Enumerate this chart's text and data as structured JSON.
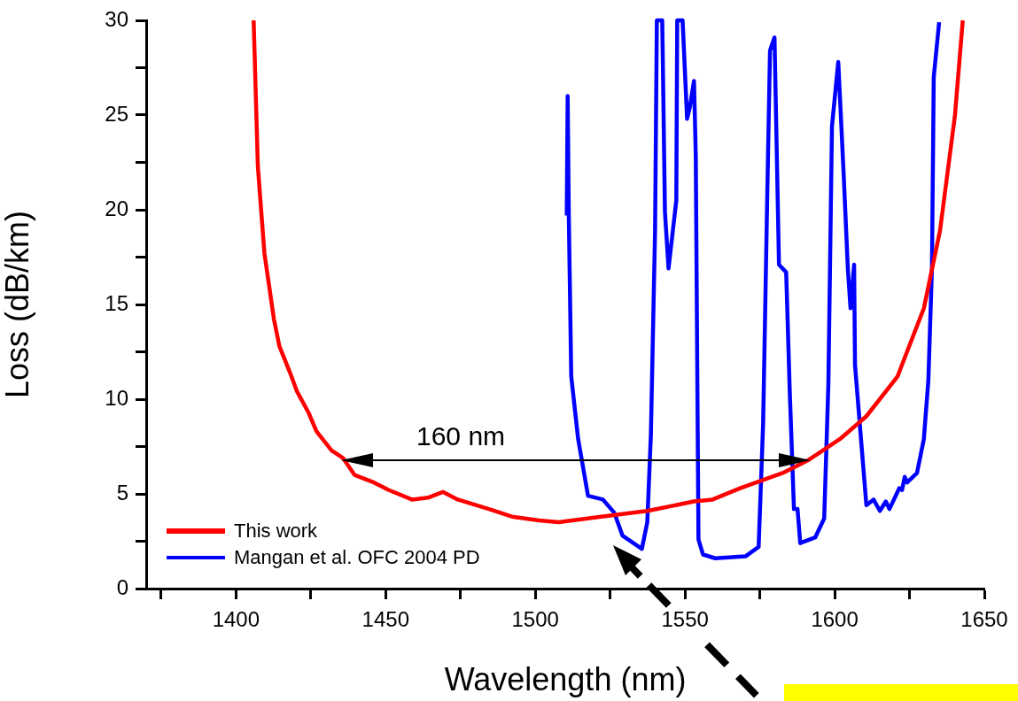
{
  "chart_data": {
    "type": "line",
    "xlabel": "Wavelength (nm)",
    "ylabel": "Loss (dB/km)",
    "xlim": [
      1370,
      1650
    ],
    "xticks": [
      {
        "value": 1375,
        "label": null
      },
      1400,
      {
        "value": 1425,
        "label": null
      },
      1450,
      {
        "value": 1475,
        "label": null
      },
      1500,
      {
        "value": 1525,
        "label": null
      },
      1550,
      {
        "value": 1575,
        "label": null
      },
      1600,
      {
        "value": 1625,
        "label": null
      },
      1650
    ],
    "ylim": [
      0,
      30
    ],
    "yticks": [
      0,
      {
        "value": 2.5,
        "label": null
      },
      5,
      {
        "value": 7.5,
        "label": null
      },
      10,
      {
        "value": 12.5,
        "label": null
      },
      15,
      {
        "value": 17.5,
        "label": null
      },
      20,
      {
        "value": 22.5,
        "label": null
      },
      25,
      {
        "value": 27.5,
        "label": null
      },
      30
    ],
    "grid": false,
    "legend": "bottom left",
    "line_style": "solid",
    "annotations": [
      "160 nm"
    ],
    "series": [
      {
        "name": "This work",
        "color": "#ff0000",
        "x": [
          1405.9,
          1407.3,
          1409.5,
          1412.7,
          1414.5,
          1418.3,
          1420.4,
          1424.2,
          1426.9,
          1431.9,
          1435.7,
          1439.6,
          1446.1,
          1451.1,
          1458.8,
          1464.1,
          1469.1,
          1474.1,
          1484.5,
          1492.2,
          1501.3,
          1507.8,
          1522,
          1537.4,
          1553,
          1559.2,
          1568.4,
          1582.6,
          1591.4,
          1601.8,
          1610.6,
          1621,
          1629.8,
          1635.2,
          1640.2,
          1642.8
        ],
        "values": [
          30,
          22.3,
          17.7,
          14.2,
          12.8,
          11.3,
          10.4,
          9.3,
          8.3,
          7.3,
          6.9,
          6.0,
          5.6,
          5.2,
          4.7,
          4.8,
          5.1,
          4.7,
          4.2,
          3.8,
          3.6,
          3.5,
          3.8,
          4.1,
          4.6,
          4.7,
          5.3,
          6.1,
          6.8,
          7.9,
          9.1,
          11.2,
          14.8,
          18.9,
          25,
          30
        ]
      },
      {
        "name": "Mangan et al. OFC 2004 PD",
        "color": "#0000ff",
        "x": [
          1510.5,
          1510.8,
          1511.2,
          1512,
          1514.3,
          1517.6,
          1522.6,
          1526.4,
          1529.1,
          1535.6,
          1537.4,
          1538.6,
          1540,
          1540.6,
          1542.4,
          1543.3,
          1544.5,
          1547.1,
          1547.4,
          1549.2,
          1550.7,
          1551.6,
          1553,
          1553.6,
          1554.5,
          1556,
          1560.1,
          1570.2,
          1574.6,
          1576.1,
          1577.5,
          1578.4,
          1579.9,
          1581.4,
          1583.8,
          1585,
          1586.4,
          1587.6,
          1588.5,
          1593.5,
          1596.5,
          1597.9,
          1599.1,
          1601.2,
          1603,
          1604.4,
          1605.3,
          1606.5,
          1606.8,
          1608.9,
          1610.6,
          1613,
          1615.1,
          1617.1,
          1618.3,
          1621.6,
          1622.5,
          1623.4,
          1624.2,
          1627.5,
          1629.8,
          1631.3,
          1632.5,
          1633.1,
          1634.9
        ],
        "values": [
          19.7,
          26,
          19.5,
          11.2,
          7.9,
          4.9,
          4.7,
          4.0,
          2.8,
          2.1,
          3.5,
          8.1,
          18.9,
          30,
          30,
          19.9,
          16.9,
          20.5,
          30,
          30,
          24.8,
          25.4,
          26.8,
          22.9,
          2.6,
          1.8,
          1.6,
          1.7,
          2.2,
          8.7,
          20.9,
          28.4,
          29.1,
          17.1,
          16.7,
          10.4,
          4.2,
          4.2,
          2.4,
          2.7,
          3.7,
          10.8,
          24.4,
          27.8,
          21.9,
          16.9,
          14.8,
          17.1,
          11.8,
          7.7,
          4.4,
          4.7,
          4.1,
          4.6,
          4.2,
          5.3,
          5.2,
          5.9,
          5.6,
          6.1,
          7.9,
          11.0,
          16.9,
          27,
          29.9
        ]
      }
    ]
  }
}
